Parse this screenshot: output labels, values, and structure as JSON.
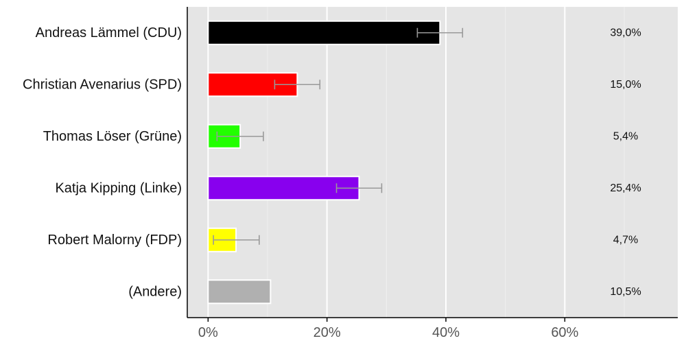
{
  "chart_data": {
    "type": "bar",
    "orientation": "horizontal",
    "categories": [
      "Andreas Lämmel (CDU)",
      "Christian Avenarius (SPD)",
      "Thomas Löser (Grüne)",
      "Katja Kipping (Linke)",
      "Robert Malorny (FDP)",
      "(Andere)"
    ],
    "values": [
      39.0,
      15.0,
      5.4,
      25.4,
      4.7,
      10.5
    ],
    "value_labels": [
      "39,0%",
      "15,0%",
      "5,4%",
      "25,4%",
      "4,7%",
      "10,5%"
    ],
    "error_bars": [
      [
        35.2,
        42.8
      ],
      [
        11.2,
        18.8
      ],
      [
        1.5,
        9.3
      ],
      [
        21.6,
        29.2
      ],
      [
        0.9,
        8.6
      ],
      null
    ],
    "colors": [
      "#000000",
      "#ff0000",
      "#22ff00",
      "#8800ee",
      "#ffff00",
      "#b0b0b0"
    ],
    "xlim": [
      -3.5,
      79
    ],
    "xticks": [
      0,
      20,
      40,
      60
    ],
    "xtick_labels": [
      "0%",
      "20%",
      "40%",
      "60%"
    ],
    "grid": true,
    "title": "",
    "xlabel": "",
    "ylabel": ""
  }
}
